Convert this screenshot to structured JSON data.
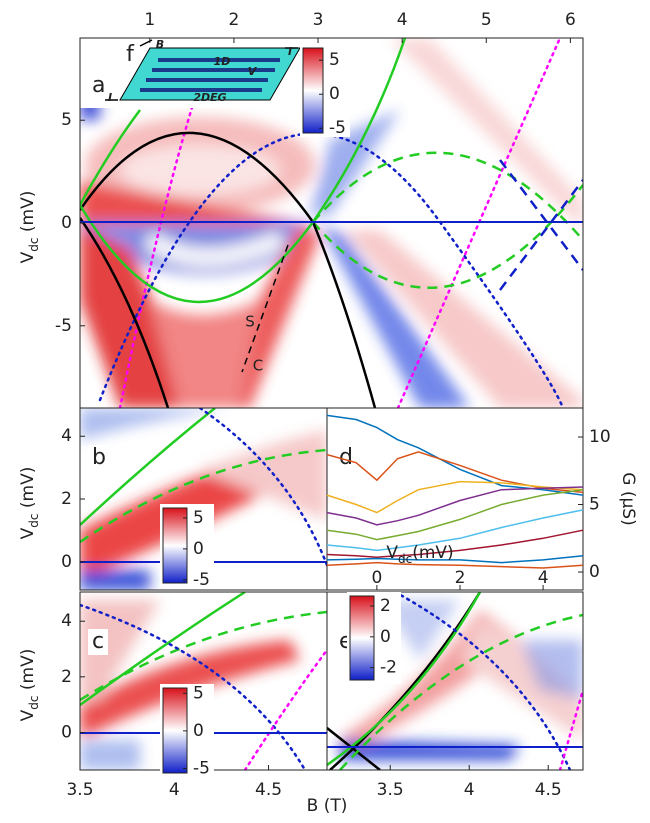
{
  "chart_data": [
    {
      "type": "heatmap",
      "label": "a",
      "ylabel": {
        "main": "V",
        "sub": "dc",
        "unit": " (mV)"
      },
      "ylim": [
        -9,
        9
      ],
      "yticks": [
        -5,
        0,
        5
      ],
      "x2lim": [
        0.17,
        6.15
      ],
      "x2ticks": [
        1,
        2,
        3,
        4,
        5,
        6
      ],
      "colorbar": {
        "lim": [
          -5.7,
          6.8
        ],
        "ticks": [
          5,
          0,
          -5
        ]
      },
      "annotations": [
        "S",
        "C"
      ],
      "inset": {
        "label": "f",
        "field": "B",
        "current_in": "I",
        "current_out": "I",
        "wire": "1D",
        "voltage": "V",
        "gas": "2DEG"
      }
    },
    {
      "type": "heatmap",
      "label": "b",
      "ylabel": {
        "main": "V",
        "sub": "dc",
        "unit": " (mV)"
      },
      "ylim": [
        -0.9,
        4.9
      ],
      "yticks": [
        0,
        2,
        4
      ],
      "colorbar": {
        "lim": [
          -5.5,
          6.6
        ],
        "ticks": [
          5,
          0,
          -5
        ]
      }
    },
    {
      "type": "heatmap",
      "label": "c",
      "ylabel": {
        "main": "V",
        "sub": "dc",
        "unit": " (mV)"
      },
      "ylim": [
        -1.35,
        5.05
      ],
      "yticks": [
        0,
        2,
        4
      ],
      "xlim": [
        3.5,
        4.81
      ],
      "xticks": [
        3.5,
        4,
        4.5
      ],
      "xlabel": "B (T)",
      "colorbar": {
        "lim": [
          -5.6,
          5.7
        ],
        "ticks": [
          5,
          0,
          -5
        ]
      }
    },
    {
      "type": "line",
      "label": "d",
      "xlabel": {
        "main": "V",
        "sub": "dc",
        "unit": "(mV)"
      },
      "y2label": "G (μS)",
      "xlim": [
        -1.2,
        4.96
      ],
      "xticks": [
        0,
        2,
        4
      ],
      "y2lim": [
        -1.33,
        12.15
      ],
      "y2ticks": [
        0,
        5,
        10
      ],
      "x": [
        -1.2,
        -0.5,
        0,
        0.5,
        1,
        2,
        3,
        4,
        4.96
      ],
      "series": [
        {
          "color": "#0072bd",
          "values": [
            11.6,
            11.3,
            10.7,
            9.8,
            9.2,
            7.6,
            6.4,
            6.1,
            5.7
          ]
        },
        {
          "color": "#d95319",
          "values": [
            8.7,
            8.1,
            6.8,
            8.4,
            8.9,
            7.9,
            6.8,
            6.2,
            5.9
          ]
        },
        {
          "color": "#edb120",
          "values": [
            5.7,
            5.0,
            4.4,
            5.3,
            6.1,
            6.7,
            6.6,
            6.3,
            6.1
          ]
        },
        {
          "color": "#7e2f8e",
          "values": [
            4.4,
            4.0,
            3.5,
            3.8,
            4.2,
            5.3,
            6.1,
            6.2,
            6.3
          ]
        },
        {
          "color": "#77ac30",
          "values": [
            3.1,
            2.8,
            2.4,
            2.7,
            3.0,
            3.9,
            5.0,
            5.7,
            6.1
          ]
        },
        {
          "color": "#4dbeee",
          "values": [
            2.0,
            1.8,
            1.6,
            1.8,
            2.0,
            2.5,
            3.3,
            4.0,
            4.6
          ]
        },
        {
          "color": "#a2142f",
          "values": [
            1.3,
            1.2,
            1.1,
            1.2,
            1.3,
            1.6,
            2.0,
            2.5,
            3.1
          ]
        },
        {
          "color": "#0072bd",
          "values": [
            0.9,
            0.95,
            1.0,
            0.95,
            0.9,
            0.9,
            0.7,
            0.9,
            1.2
          ]
        },
        {
          "color": "#d95319",
          "values": [
            0.5,
            0.6,
            0.7,
            0.6,
            0.55,
            0.5,
            0.4,
            0.3,
            0.5
          ]
        }
      ]
    },
    {
      "type": "heatmap",
      "label": "e",
      "xlim": [
        3.1,
        4.72
      ],
      "xticks": [
        3.5,
        4,
        4.5
      ],
      "colorbar": {
        "lim": [
          -2.8,
          2.65
        ],
        "ticks": [
          2,
          0,
          -2
        ]
      }
    }
  ]
}
